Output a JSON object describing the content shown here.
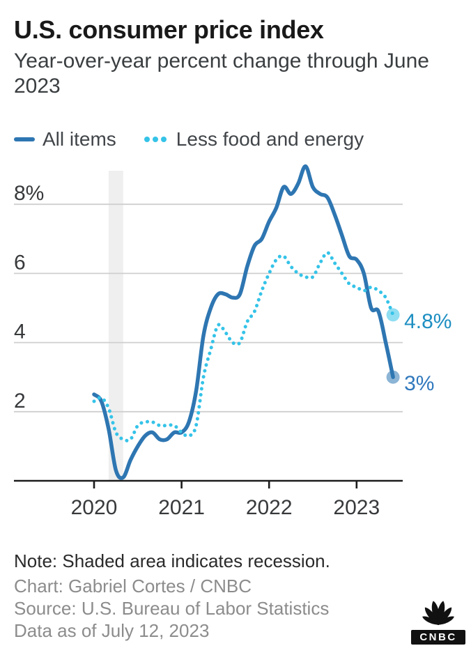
{
  "header": {
    "title": "U.S. consumer price index",
    "subtitle": "Year-over-year percent change through June 2023"
  },
  "legend": [
    {
      "label": "All items",
      "style": "solid",
      "color": "#2e76b2"
    },
    {
      "label": "Less food and energy",
      "style": "dotted",
      "color": "#35c3e8"
    }
  ],
  "chart_data": {
    "type": "line",
    "title": "U.S. consumer price index",
    "subtitle": "Year-over-year percent change through June 2023",
    "ylabel": "percent",
    "ylim": [
      0,
      9.0
    ],
    "grid": "horizontal",
    "legend_position": "top",
    "x": [
      "2020-01",
      "2020-02",
      "2020-03",
      "2020-04",
      "2020-05",
      "2020-06",
      "2020-07",
      "2020-08",
      "2020-09",
      "2020-10",
      "2020-11",
      "2020-12",
      "2021-01",
      "2021-02",
      "2021-03",
      "2021-04",
      "2021-05",
      "2021-06",
      "2021-07",
      "2021-08",
      "2021-09",
      "2021-10",
      "2021-11",
      "2021-12",
      "2022-01",
      "2022-02",
      "2022-03",
      "2022-04",
      "2022-05",
      "2022-06",
      "2022-07",
      "2022-08",
      "2022-09",
      "2022-10",
      "2022-11",
      "2022-12",
      "2023-01",
      "2023-02",
      "2023-03",
      "2023-04",
      "2023-05",
      "2023-06"
    ],
    "series": [
      {
        "name": "All items",
        "color": "#2e76b2",
        "line_style": "solid",
        "values": [
          2.5,
          2.3,
          1.5,
          0.3,
          0.1,
          0.6,
          1.0,
          1.3,
          1.4,
          1.2,
          1.2,
          1.4,
          1.4,
          1.7,
          2.6,
          4.2,
          5.0,
          5.4,
          5.4,
          5.3,
          5.4,
          6.2,
          6.8,
          7.0,
          7.5,
          7.9,
          8.5,
          8.3,
          8.6,
          9.1,
          8.5,
          8.3,
          8.2,
          7.7,
          7.1,
          6.5,
          6.4,
          6.0,
          5.0,
          4.9,
          4.0,
          3.0
        ],
        "end_label": "3%",
        "end_label_color": "#3078bd"
      },
      {
        "name": "Less food and energy",
        "color": "#35c3e8",
        "line_style": "dotted",
        "values": [
          2.3,
          2.4,
          2.1,
          1.4,
          1.2,
          1.2,
          1.6,
          1.7,
          1.7,
          1.6,
          1.6,
          1.6,
          1.4,
          1.3,
          1.6,
          3.0,
          3.8,
          4.5,
          4.3,
          4.0,
          4.0,
          4.6,
          4.9,
          5.5,
          6.0,
          6.4,
          6.5,
          6.2,
          6.0,
          5.9,
          5.9,
          6.3,
          6.6,
          6.3,
          6.0,
          5.7,
          5.6,
          5.5,
          5.6,
          5.5,
          5.3,
          4.8
        ],
        "end_label": "4.8%",
        "end_label_color": "#1e8fc2"
      }
    ],
    "y_ticks": [
      {
        "value": 8,
        "label": "8%"
      },
      {
        "value": 6,
        "label": "6"
      },
      {
        "value": 4,
        "label": "4"
      },
      {
        "value": 2,
        "label": "2"
      }
    ],
    "x_ticks": [
      {
        "month": "2020-01",
        "label": "2020"
      },
      {
        "month": "2021-01",
        "label": "2021"
      },
      {
        "month": "2022-01",
        "label": "2022"
      },
      {
        "month": "2023-01",
        "label": "2023"
      }
    ],
    "recession_shading": {
      "from": "2020-03",
      "to": "2020-05",
      "color": "#efefef"
    }
  },
  "footer": {
    "note": "Note: Shaded area indicates recession.",
    "credit": "Chart: Gabriel Cortes / CNBC",
    "source": "Source: U.S. Bureau of Labor Statistics",
    "data_as_of": "Data as of July 12, 2023",
    "logo_text": "CNBC"
  },
  "colors": {
    "all_items_line": "#2e76b2",
    "core_line": "#35c3e8",
    "all_items_label": "#3078bd",
    "core_label": "#1e8fc2",
    "gridline": "#cfcfcf",
    "axis": "#1c1c1c",
    "recession_band": "#efefef",
    "credits_text": "#8c8c8c"
  }
}
